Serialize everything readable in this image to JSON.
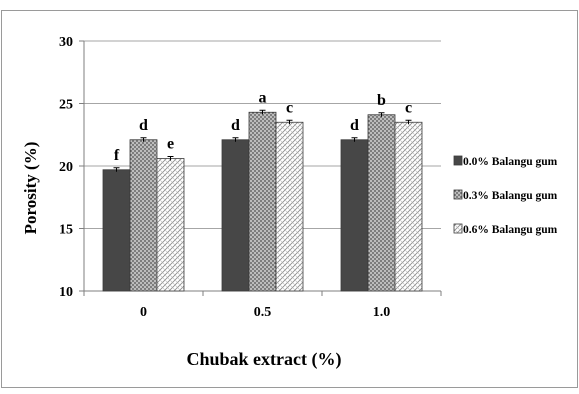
{
  "chart_data": {
    "type": "bar",
    "title": "",
    "xlabel": "Chubak extract (%)",
    "ylabel": "Porosity  (%)",
    "categories": [
      "0",
      "0.5",
      "1.0"
    ],
    "ylim": [
      10,
      30
    ],
    "yticks": [
      "10",
      "15",
      "20",
      "25",
      "30"
    ],
    "grid": true,
    "legend_position": "right",
    "series": [
      {
        "name": "0.0% Balangu gum",
        "values": [
          19.7,
          22.1,
          22.1
        ],
        "labels": [
          "f",
          "d",
          "d"
        ],
        "color": "#4a4a4a",
        "pattern": "solid"
      },
      {
        "name": "0.3% Balangu gum",
        "values": [
          22.1,
          24.3,
          24.1
        ],
        "labels": [
          "d",
          "a",
          "b"
        ],
        "color": "#8c8c8c",
        "pattern": "dots"
      },
      {
        "name": "0.6% Balangu gum",
        "values": [
          20.6,
          23.5,
          23.5
        ],
        "labels": [
          "e",
          "c",
          "c"
        ],
        "color": "#ffffff",
        "pattern": "hatch"
      }
    ]
  }
}
